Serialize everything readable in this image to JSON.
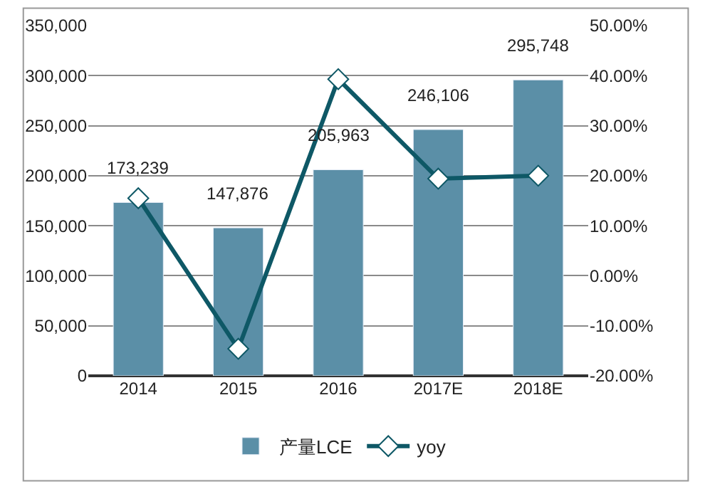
{
  "chart_data": {
    "type": "bar",
    "categories": [
      "2014",
      "2015",
      "2016",
      "2017E",
      "2018E"
    ],
    "series": [
      {
        "name": "产量LCE",
        "color": "#5b8fa7",
        "values": [
          173239,
          147876,
          205963,
          246106,
          295748
        ],
        "value_labels": [
          "173,239",
          "147,876",
          "205,963",
          "246,106",
          "295,748"
        ]
      },
      {
        "name": "yoy",
        "type": "line",
        "axis": "y2",
        "color": "#0e5866",
        "marker": "diamond",
        "values": [
          15.5,
          -14.6,
          39.3,
          19.4,
          20.0
        ]
      }
    ],
    "ylim": [
      0,
      350000
    ],
    "yticks": [
      {
        "value": 0,
        "label": "0"
      },
      {
        "value": 50000,
        "label": "50,000"
      },
      {
        "value": 100000,
        "label": "100,000"
      },
      {
        "value": 150000,
        "label": "150,000"
      },
      {
        "value": 200000,
        "label": "200,000"
      },
      {
        "value": 250000,
        "label": "250,000"
      },
      {
        "value": 300000,
        "label": "300,000"
      },
      {
        "value": 350000,
        "label": "350,000"
      }
    ],
    "y2lim": [
      -20,
      50
    ],
    "y2ticks": [
      {
        "value": -20,
        "label": "-20.00%"
      },
      {
        "value": -10,
        "label": "-10.00%"
      },
      {
        "value": 0,
        "label": "0.00%"
      },
      {
        "value": 10,
        "label": "10.00%"
      },
      {
        "value": 20,
        "label": "20.00%"
      },
      {
        "value": 30,
        "label": "30.00%"
      },
      {
        "value": 40,
        "label": "40.00%"
      },
      {
        "value": 50,
        "label": "50.00%"
      }
    ],
    "grid": "y",
    "legend": "bottom"
  }
}
